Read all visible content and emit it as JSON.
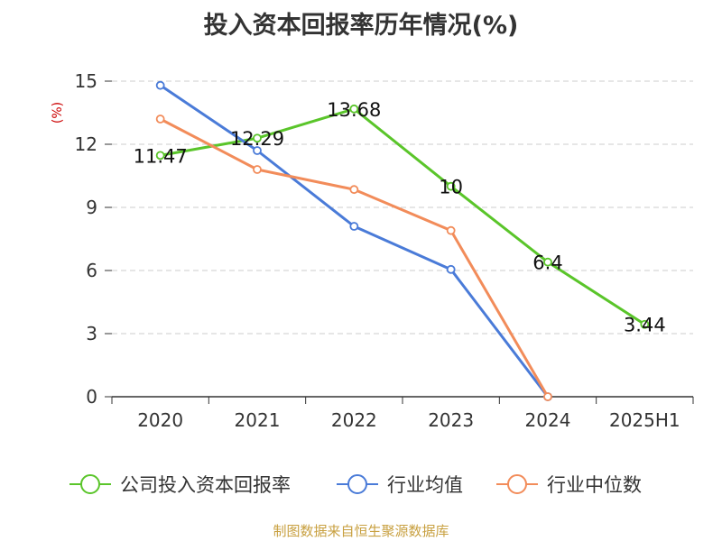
{
  "chart_data": {
    "type": "line",
    "title": "投入资本回报率历年情况(%)",
    "ylabel": "(%)",
    "xlabel": "",
    "categories": [
      "2020",
      "2021",
      "2022",
      "2023",
      "2024",
      "2025H1"
    ],
    "ylim": [
      0,
      15
    ],
    "yticks": [
      0,
      3,
      6,
      9,
      12,
      15
    ],
    "grid": true,
    "legend": "bottom",
    "series": [
      {
        "name": "公司投入资本回报率",
        "color": "#5ac52a",
        "values": [
          11.47,
          12.29,
          13.68,
          10,
          6.4,
          3.44
        ],
        "labels": [
          "11.47",
          "12.29",
          "13.68",
          "10",
          "6.4",
          "3.44"
        ]
      },
      {
        "name": "行业均值",
        "color": "#4a7bd8",
        "values": [
          14.8,
          11.7,
          8.1,
          6.05,
          0,
          null
        ]
      },
      {
        "name": "行业中位数",
        "color": "#f28c5a",
        "values": [
          13.2,
          10.8,
          9.85,
          7.9,
          0,
          null
        ]
      }
    ]
  },
  "source": "制图数据来自恒生聚源数据库"
}
